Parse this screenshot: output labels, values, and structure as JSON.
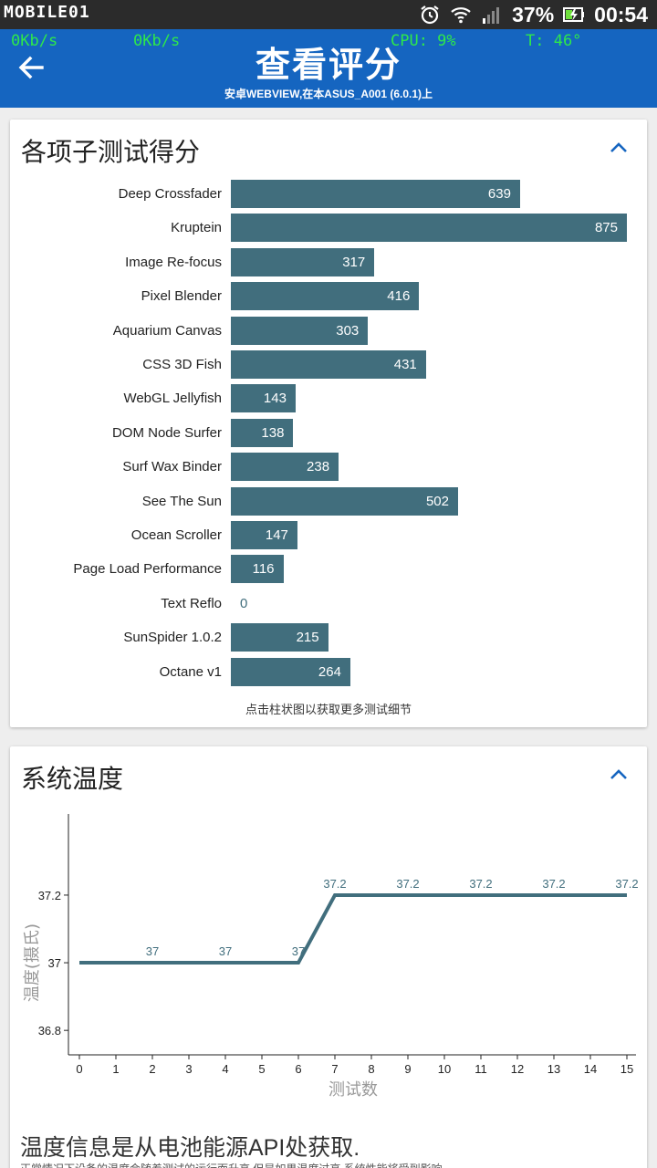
{
  "status_bar": {
    "logo": "MOBILE01",
    "battery": "37%",
    "time": "00:54",
    "icons": [
      "alarm-icon",
      "wifi-icon",
      "signal-icon",
      "battery-charging-icon"
    ]
  },
  "overlay": {
    "down_speed": "0Kb/s",
    "up_speed": "0Kb/s",
    "cpu": "CPU: 9%",
    "temp": "T: 46°"
  },
  "app_bar": {
    "title": "查看评分",
    "subtitle": "安卓WEBVIEW,在本ASUS_A001 (6.0.1)上"
  },
  "scores_card": {
    "title": "各项子测试得分",
    "hint": "点击柱状图以获取更多测试细节",
    "bar_color": "#416e7d",
    "chart_data": {
      "type": "bar",
      "orientation": "horizontal",
      "categories": [
        "Deep Crossfader",
        "Kruptein",
        "Image Re-focus",
        "Pixel Blender",
        "Aquarium Canvas",
        "CSS 3D Fish",
        "WebGL Jellyfish",
        "DOM Node Surfer",
        "Surf Wax Binder",
        "See The Sun",
        "Ocean Scroller",
        "Page Load Performance",
        "Text Reflo",
        "SunSpider 1.0.2",
        "Octane v1"
      ],
      "values": [
        639,
        875,
        317,
        416,
        303,
        431,
        143,
        138,
        238,
        502,
        147,
        116,
        0,
        215,
        264
      ],
      "xlim": [
        0,
        875
      ]
    }
  },
  "temp_card": {
    "title": "系统温度",
    "line_color": "#416e7d",
    "chart_data": {
      "type": "line",
      "xlabel": "测试数",
      "ylabel": "温度(摄氏)",
      "x": [
        0,
        6,
        7,
        15
      ],
      "y": [
        37,
        37,
        37.2,
        37.2
      ],
      "xticks": [
        0,
        1,
        2,
        3,
        4,
        5,
        6,
        7,
        8,
        9,
        10,
        11,
        12,
        13,
        14,
        15
      ],
      "yticks": [
        36.8,
        37,
        37.2
      ],
      "xlim": [
        0,
        15
      ],
      "ylim": [
        36.76,
        37.44
      ],
      "data_labels": [
        {
          "x": 2,
          "y": 37,
          "label": "37"
        },
        {
          "x": 4,
          "y": 37,
          "label": "37"
        },
        {
          "x": 6,
          "y": 37,
          "label": "37"
        },
        {
          "x": 7,
          "y": 37.2,
          "label": "37.2"
        },
        {
          "x": 9,
          "y": 37.2,
          "label": "37.2"
        },
        {
          "x": 11,
          "y": 37.2,
          "label": "37.2"
        },
        {
          "x": 13,
          "y": 37.2,
          "label": "37.2"
        },
        {
          "x": 15,
          "y": 37.2,
          "label": "37.2"
        }
      ]
    }
  },
  "footer": {
    "title": "温度信息是从电池能源API处获取.",
    "subtitle": "正常情况下设备的温度会随着测试的运行而升高,但是如果温度过高,系统性能将受到影响"
  }
}
